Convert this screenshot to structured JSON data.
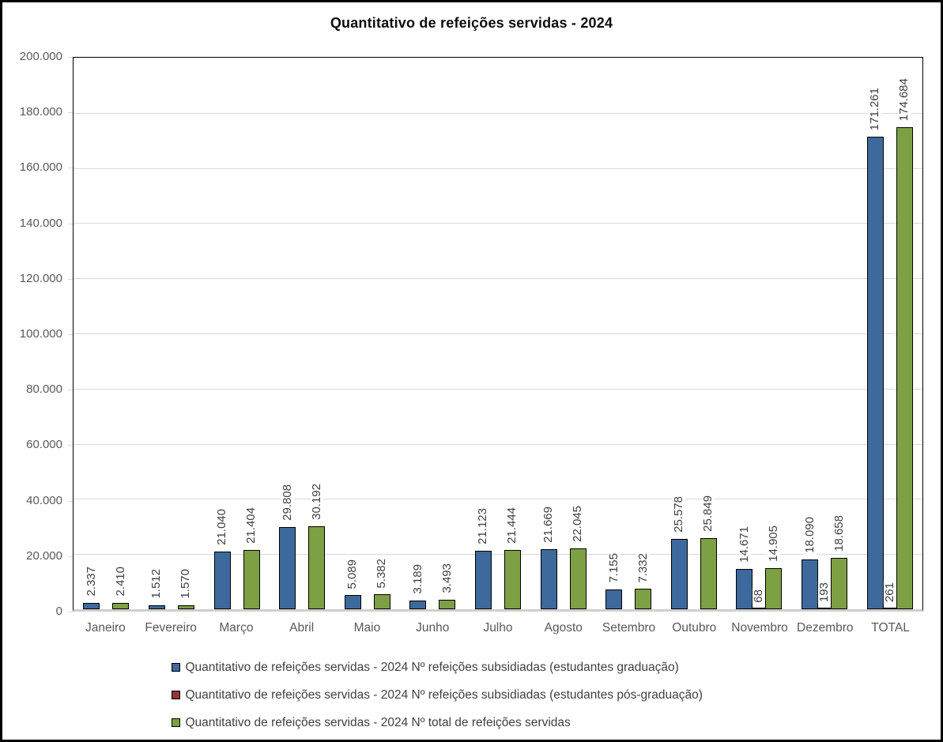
{
  "title": "Quantitativo de refeições servidas - 2024",
  "colors": {
    "graduacao": "#3d699c",
    "pos_graduacao": "#943634",
    "total": "#7ea044",
    "bar_border": "#000000",
    "gridline": "#d9d9d9",
    "axis_label": "#595959",
    "data_label": "#404040"
  },
  "chart_data": {
    "type": "bar",
    "title": "Quantitativo de refeições servidas - 2024",
    "xlabel": "",
    "ylabel": "",
    "ylim": [
      0,
      200000
    ],
    "ytick_step": 20000,
    "yticks": [
      "0",
      "20.000",
      "40.000",
      "60.000",
      "80.000",
      "100.000",
      "120.000",
      "140.000",
      "160.000",
      "180.000",
      "200.000"
    ],
    "grid": true,
    "legend_position": "bottom",
    "categories": [
      "Janeiro",
      "Fevereiro",
      "Março",
      "Abril",
      "Maio",
      "Junho",
      "Julho",
      "Agosto",
      "Setembro",
      "Outubro",
      "Novembro",
      "Dezembro",
      "TOTAL"
    ],
    "series": [
      {
        "id": "graduacao",
        "name": "Quantitativo de refeições servidas - 2024 Nº refeições subsidiadas (estudantes graduação)",
        "color": "#3d699c",
        "values": [
          2337,
          1512,
          21040,
          29808,
          5089,
          3189,
          21123,
          21669,
          7155,
          25578,
          14671,
          18090,
          171261
        ],
        "labels": [
          "2.337",
          "1.512",
          "21.040",
          "29.808",
          "5.089",
          "3.189",
          "21.123",
          "21.669",
          "7.155",
          "25.578",
          "14.671",
          "18.090",
          "171.261"
        ]
      },
      {
        "id": "pos-graduacao",
        "name": "Quantitativo de refeições servidas - 2024 Nº refeições subsidiadas (estudantes pós-graduação)",
        "color": "#943634",
        "values": [
          null,
          null,
          null,
          null,
          null,
          null,
          null,
          null,
          null,
          null,
          68,
          193,
          261
        ],
        "labels": [
          null,
          null,
          null,
          null,
          null,
          null,
          null,
          null,
          null,
          null,
          "68",
          "193",
          "261"
        ]
      },
      {
        "id": "total",
        "name": "Quantitativo de refeições servidas - 2024 Nº total de refeições servidas",
        "color": "#7ea044",
        "values": [
          2410,
          1570,
          21404,
          30192,
          5382,
          3493,
          21444,
          22045,
          7332,
          25849,
          14905,
          18658,
          174684
        ],
        "labels": [
          "2.410",
          "1.570",
          "21.404",
          "30.192",
          "5.382",
          "3.493",
          "21.444",
          "22.045",
          "7.332",
          "25.849",
          "14.905",
          "18.658",
          "174.684"
        ]
      }
    ]
  }
}
